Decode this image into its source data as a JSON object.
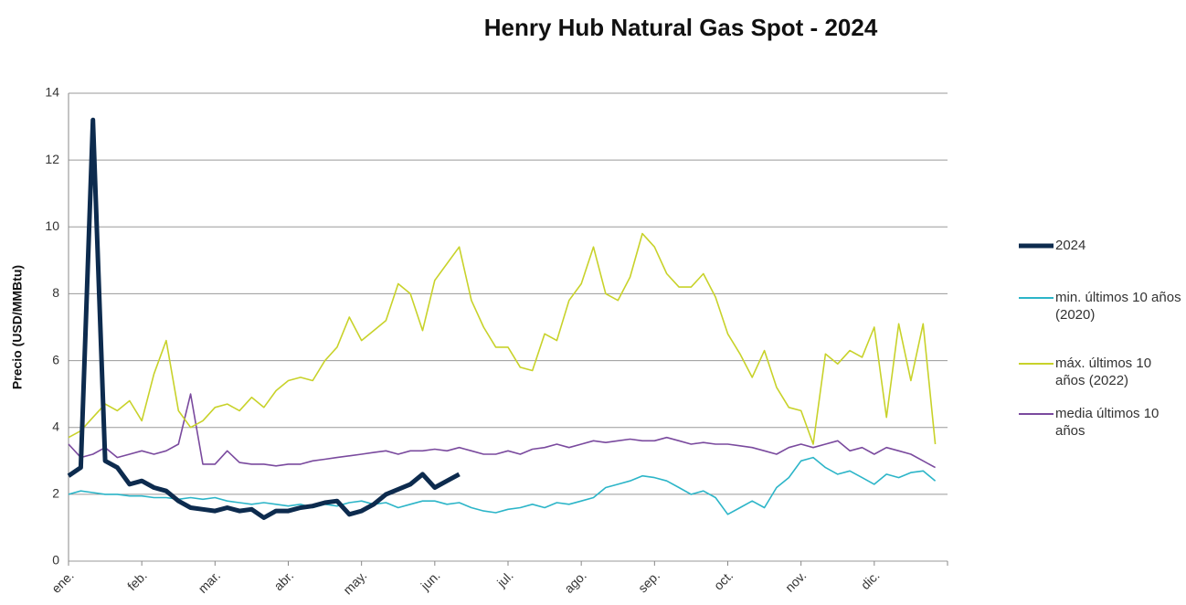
{
  "chart_data": {
    "type": "line",
    "title": "Henry Hub Natural Gas Spot - 2024",
    "y_label": "Precio (USD/MMBtu)",
    "categories": [
      "ene.",
      null,
      null,
      null,
      null,
      null,
      "feb.",
      null,
      null,
      null,
      null,
      null,
      "mar.",
      null,
      null,
      null,
      null,
      null,
      "abr.",
      null,
      null,
      null,
      null,
      null,
      "may.",
      null,
      null,
      null,
      null,
      null,
      "jun.",
      null,
      null,
      null,
      null,
      null,
      "jul.",
      null,
      null,
      null,
      null,
      null,
      "ago.",
      null,
      null,
      null,
      null,
      null,
      "sep.",
      null,
      null,
      null,
      null,
      null,
      "oct.",
      null,
      null,
      null,
      null,
      null,
      "nov.",
      null,
      null,
      null,
      null,
      null,
      "dic.",
      null,
      null,
      null,
      null,
      null
    ],
    "series": [
      {
        "name": "2024",
        "color": "#0d2b4e",
        "values": [
          2.55,
          2.8,
          13.2,
          3.0,
          2.8,
          2.3,
          2.4,
          2.2,
          2.1,
          1.8,
          1.6,
          1.55,
          1.5,
          1.6,
          1.5,
          1.55,
          1.3,
          1.5,
          1.5,
          1.6,
          1.65,
          1.75,
          1.8,
          1.4,
          1.5,
          1.7,
          2.0,
          2.15,
          2.3,
          2.6,
          2.2,
          2.4,
          2.6,
          null,
          null,
          null,
          null,
          null,
          null,
          null,
          null,
          null,
          null,
          null,
          null,
          null,
          null,
          null,
          null,
          null,
          null,
          null,
          null,
          null,
          null,
          null,
          null,
          null,
          null,
          null,
          null,
          null,
          null,
          null,
          null,
          null,
          null,
          null,
          null,
          null,
          null,
          null
        ]
      },
      {
        "name": "min. últimos 10 años (2020)",
        "color": "#2cb5c8",
        "values": [
          2.0,
          2.1,
          2.05,
          2.0,
          2.0,
          1.95,
          1.95,
          1.9,
          1.9,
          1.85,
          1.9,
          1.85,
          1.9,
          1.8,
          1.75,
          1.7,
          1.75,
          1.7,
          1.65,
          1.7,
          1.6,
          1.7,
          1.65,
          1.75,
          1.8,
          1.7,
          1.75,
          1.6,
          1.7,
          1.8,
          1.8,
          1.7,
          1.75,
          1.6,
          1.5,
          1.45,
          1.55,
          1.6,
          1.7,
          1.6,
          1.75,
          1.7,
          1.8,
          1.9,
          2.2,
          2.3,
          2.4,
          2.55,
          2.5,
          2.4,
          2.2,
          2.0,
          2.1,
          1.9,
          1.4,
          1.6,
          1.8,
          1.6,
          2.2,
          2.5,
          3.0,
          3.1,
          2.8,
          2.6,
          2.7,
          2.5,
          2.3,
          2.6,
          2.5,
          2.65,
          2.7,
          2.4
        ]
      },
      {
        "name": "máx. últimos 10 años (2022)",
        "color": "#c8d22a",
        "values": [
          3.7,
          3.9,
          4.3,
          4.7,
          4.5,
          4.8,
          4.2,
          5.6,
          6.6,
          4.5,
          4.0,
          4.2,
          4.6,
          4.7,
          4.5,
          4.9,
          4.6,
          5.1,
          5.4,
          5.5,
          5.4,
          6.0,
          6.4,
          7.3,
          6.6,
          6.9,
          7.2,
          8.3,
          8.0,
          6.9,
          8.4,
          8.9,
          9.4,
          7.8,
          7.0,
          6.4,
          6.4,
          5.8,
          5.7,
          6.8,
          6.6,
          7.8,
          8.3,
          9.4,
          8.0,
          7.8,
          8.5,
          9.8,
          9.4,
          8.6,
          8.2,
          8.2,
          8.6,
          7.9,
          6.8,
          6.2,
          5.5,
          6.3,
          5.2,
          4.6,
          4.5,
          3.5,
          6.2,
          5.9,
          6.3,
          6.1,
          7.0,
          4.3,
          7.1,
          5.4,
          7.1,
          3.5
        ]
      },
      {
        "name": "media últimos 10 años",
        "color": "#7a4a9e",
        "values": [
          3.5,
          3.1,
          3.2,
          3.4,
          3.1,
          3.2,
          3.3,
          3.2,
          3.3,
          3.5,
          5.0,
          2.9,
          2.9,
          3.3,
          2.95,
          2.9,
          2.9,
          2.85,
          2.9,
          2.9,
          3.0,
          3.05,
          3.1,
          3.15,
          3.2,
          3.25,
          3.3,
          3.2,
          3.3,
          3.3,
          3.35,
          3.3,
          3.4,
          3.3,
          3.2,
          3.2,
          3.3,
          3.2,
          3.35,
          3.4,
          3.5,
          3.4,
          3.5,
          3.6,
          3.55,
          3.6,
          3.65,
          3.6,
          3.6,
          3.7,
          3.6,
          3.5,
          3.55,
          3.5,
          3.5,
          3.45,
          3.4,
          3.3,
          3.2,
          3.4,
          3.5,
          3.4,
          3.5,
          3.6,
          3.3,
          3.4,
          3.2,
          3.4,
          3.3,
          3.2,
          3.0,
          2.8
        ]
      }
    ],
    "ylim": [
      0,
      14
    ],
    "yticks": [
      0,
      2,
      4,
      6,
      8,
      10,
      12,
      14
    ],
    "grid": true,
    "legend": "right"
  }
}
